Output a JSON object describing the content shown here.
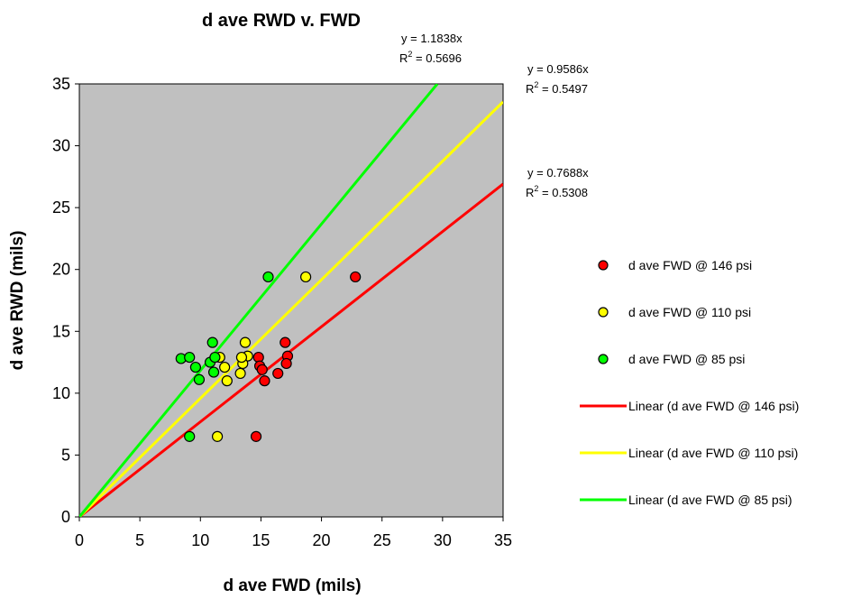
{
  "chart_data": {
    "type": "scatter",
    "title": "d ave RWD v. FWD",
    "xlabel": "d ave FWD (mils)",
    "ylabel": "d ave RWD (mils)",
    "xlim": [
      0,
      35
    ],
    "ylim": [
      0,
      35
    ],
    "xticks": [
      "0",
      "5",
      "10",
      "15",
      "20",
      "25",
      "30",
      "35"
    ],
    "yticks": [
      "0",
      "5",
      "10",
      "15",
      "20",
      "25",
      "30",
      "35"
    ],
    "grid": false,
    "plot_background": "#c0c0c0",
    "legend_position": "right",
    "series": [
      {
        "name": "d ave FWD @ 146 psi",
        "color": "#ff0000",
        "points": [
          [
            22.8,
            19.4
          ],
          [
            17.0,
            14.1
          ],
          [
            17.2,
            13.0
          ],
          [
            17.1,
            12.4
          ],
          [
            16.4,
            11.6
          ],
          [
            15.3,
            11.0
          ],
          [
            14.8,
            12.9
          ],
          [
            14.9,
            12.2
          ],
          [
            15.1,
            11.9
          ],
          [
            14.6,
            6.5
          ]
        ]
      },
      {
        "name": "d ave FWD @ 110 psi",
        "color": "#ffff00",
        "points": [
          [
            18.7,
            19.4
          ],
          [
            13.7,
            14.1
          ],
          [
            13.9,
            13.0
          ],
          [
            13.5,
            12.4
          ],
          [
            13.3,
            11.6
          ],
          [
            12.2,
            11.0
          ],
          [
            11.6,
            12.9
          ],
          [
            12.0,
            12.1
          ],
          [
            11.4,
            6.5
          ],
          [
            13.4,
            12.9
          ]
        ]
      },
      {
        "name": "d ave FWD @ 85 psi",
        "color": "#00ff00",
        "points": [
          [
            15.6,
            19.4
          ],
          [
            11.0,
            14.1
          ],
          [
            8.4,
            12.8
          ],
          [
            9.1,
            12.9
          ],
          [
            9.6,
            12.1
          ],
          [
            9.9,
            11.1
          ],
          [
            11.1,
            11.7
          ],
          [
            10.8,
            12.5
          ],
          [
            11.2,
            12.9
          ],
          [
            9.1,
            6.5
          ]
        ]
      }
    ],
    "trendlines": [
      {
        "name": "Linear (d ave FWD @ 146 psi)",
        "color": "#ff0000",
        "slope": 0.7688,
        "equation": "y = 0.7688x",
        "r2_label": "R",
        "r2_sup": "2",
        "r2_value": " = 0.5308"
      },
      {
        "name": "Linear (d ave FWD @ 110 psi)",
        "color": "#ffff00",
        "slope": 0.9586,
        "equation": "y = 0.9586x",
        "r2_label": "R",
        "r2_sup": "2",
        "r2_value": " = 0.5497"
      },
      {
        "name": "Linear (d ave FWD @ 85 psi)",
        "color": "#00ff00",
        "slope": 1.1838,
        "equation": "y = 1.1838x",
        "r2_label": "R",
        "r2_sup": "2",
        "r2_value": " = 0.5696"
      }
    ]
  }
}
